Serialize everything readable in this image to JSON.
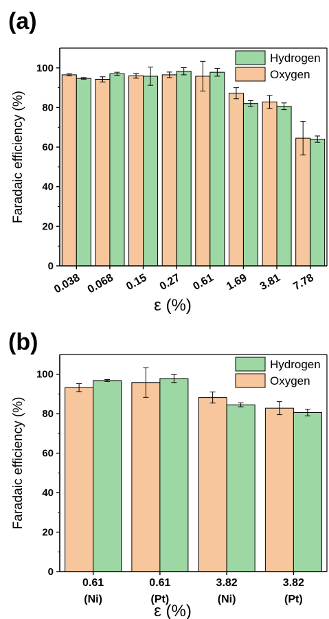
{
  "colors": {
    "oxygen": "#f7c69c",
    "hydrogen": "#9dd7a3",
    "axis": "#000000",
    "errorbar": "#000000"
  },
  "chart_data": [
    {
      "panel_label": "(a)",
      "type": "bar",
      "ylabel": "Faradaic efficiency (%)",
      "xlabel": "ε (%)",
      "ylim": [
        0,
        110
      ],
      "yticks": [
        "0",
        "20",
        "40",
        "60",
        "80",
        "100"
      ],
      "categories": [
        "0.038",
        "0.068",
        "0.15",
        "0.27",
        "0.61",
        "1.69",
        "3.81",
        "7.78"
      ],
      "grid": false,
      "legend_position": "top-right",
      "legend": [
        "Hydrogen",
        "Oxygen"
      ],
      "series": [
        {
          "name": "Oxygen",
          "values": [
            96.5,
            94.2,
            96.0,
            96.5,
            95.8,
            87.2,
            82.8,
            64.5
          ],
          "errors": [
            0.5,
            1.3,
            1.2,
            1.4,
            7.5,
            2.8,
            3.3,
            8.5
          ]
        },
        {
          "name": "Hydrogen",
          "values": [
            94.7,
            97.0,
            95.8,
            98.3,
            97.8,
            82.0,
            80.6,
            64.0
          ],
          "errors": [
            0.4,
            0.8,
            4.6,
            1.8,
            2.0,
            1.5,
            1.7,
            1.6
          ]
        }
      ]
    },
    {
      "panel_label": "(b)",
      "type": "bar",
      "ylabel": "Faradaic efficiency (%)",
      "xlabel": "ε (%)",
      "ylim": [
        0,
        110
      ],
      "yticks": [
        "0",
        "20",
        "40",
        "60",
        "80",
        "100"
      ],
      "categories": [
        {
          "value": "0.61",
          "sub": "(Ni)"
        },
        {
          "value": "0.61",
          "sub": "(Pt)"
        },
        {
          "value": "3.82",
          "sub": "(Ni)"
        },
        {
          "value": "3.82",
          "sub": "(Pt)"
        }
      ],
      "grid": false,
      "legend_position": "top-right",
      "legend": [
        "Hydrogen",
        "Oxygen"
      ],
      "series": [
        {
          "name": "Oxygen",
          "values": [
            93.2,
            95.8,
            88.2,
            82.8
          ],
          "errors": [
            2.0,
            7.5,
            2.8,
            3.3
          ]
        },
        {
          "name": "Hydrogen",
          "values": [
            96.8,
            97.8,
            84.5,
            80.6
          ],
          "errors": [
            0.5,
            2.0,
            1.0,
            1.7
          ]
        }
      ]
    }
  ]
}
